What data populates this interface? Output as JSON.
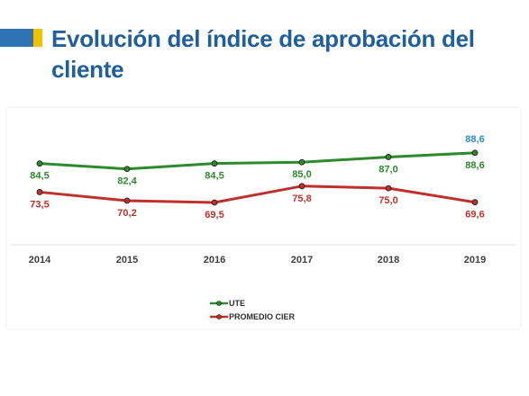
{
  "title": "Evolución del índice de aprobación del cliente",
  "colors": {
    "title": "#1f5f9b",
    "accent_blue": "#2e74b5",
    "accent_yellow": "#f2c100",
    "top_label": "#2e8bc0"
  },
  "chart_data": {
    "type": "line",
    "title": "Evolución del índice de aprobación del cliente",
    "x": [
      "2014",
      "2015",
      "2016",
      "2017",
      "2018",
      "2019"
    ],
    "ylim": [
      65,
      92
    ],
    "grid": false,
    "legend_position": "bottom-center",
    "series": [
      {
        "name": "UTE",
        "color": "#2d8a2d",
        "values": [
          84.5,
          82.4,
          84.5,
          85.0,
          87.0,
          88.6
        ],
        "labels": [
          "84,5",
          "82,4",
          "84,5",
          "85,0",
          "87,0",
          "88,6"
        ]
      },
      {
        "name": "PROMEDIO CIER",
        "color": "#c0302a",
        "values": [
          73.5,
          70.2,
          69.5,
          75.8,
          75.0,
          69.6
        ],
        "labels": [
          "73,5",
          "70,2",
          "69,5",
          "75,8",
          "75,0",
          "69,6"
        ]
      }
    ],
    "annotations": [
      {
        "x": "2019",
        "text": "88,6",
        "color": "#2e8bc0"
      }
    ]
  }
}
